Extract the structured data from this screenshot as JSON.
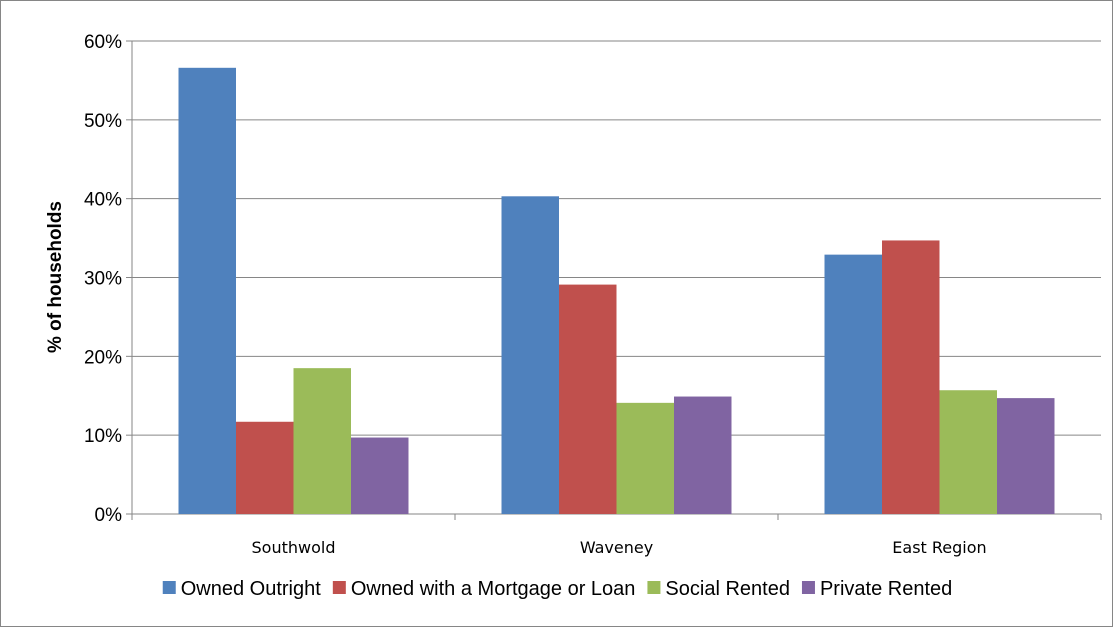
{
  "chart_data": {
    "type": "bar",
    "title": "",
    "xlabel": "",
    "ylabel": "% of households",
    "ylim": [
      0,
      60
    ],
    "yticks": [
      "0%",
      "10%",
      "20%",
      "30%",
      "40%",
      "50%",
      "60%"
    ],
    "grid": true,
    "legend_position": "bottom",
    "categories": [
      "Southwold",
      "Waveney",
      "East Region"
    ],
    "series": [
      {
        "name": "Owned Outright",
        "color": "#4F81BD",
        "values": [
          56.6,
          40.3,
          32.9
        ]
      },
      {
        "name": "Owned with a Mortgage or Loan",
        "color": "#C0504D",
        "values": [
          11.7,
          29.1,
          34.7
        ]
      },
      {
        "name": "Social Rented",
        "color": "#9BBB59",
        "values": [
          18.5,
          14.1,
          15.7
        ]
      },
      {
        "name": "Private Rented",
        "color": "#8064A2",
        "values": [
          9.7,
          14.9,
          14.7
        ]
      }
    ]
  }
}
